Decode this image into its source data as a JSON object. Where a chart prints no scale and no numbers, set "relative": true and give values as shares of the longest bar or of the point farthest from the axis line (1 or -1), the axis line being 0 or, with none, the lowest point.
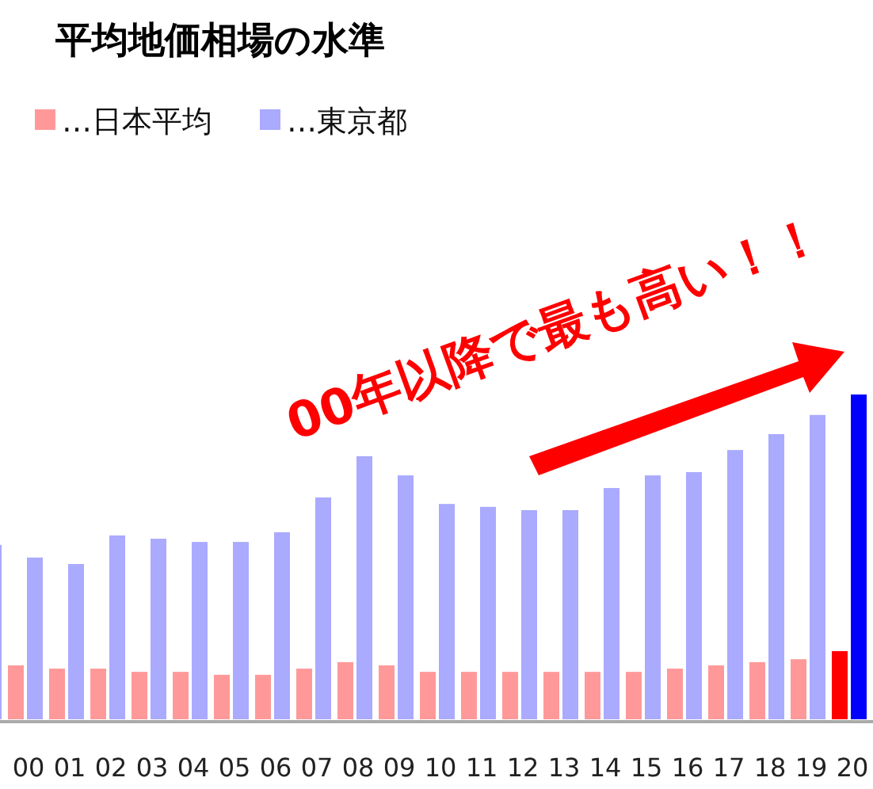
{
  "chart_data": {
    "type": "bar",
    "title": "平均地価相場の水準",
    "relative": true,
    "legend": "top left",
    "categories": [
      null,
      "00",
      "01",
      "02",
      "03",
      "04",
      "05",
      "06",
      "07",
      "08",
      "09",
      "10",
      "11",
      "12",
      "13",
      "14",
      "15",
      "16",
      "17",
      "18",
      "19",
      "20"
    ],
    "series": [
      {
        "name": "…日本平均",
        "color": "#ff9999",
        "colors": [
          null,
          "#ff9999",
          "#ff9999",
          "#ff9999",
          "#ff9999",
          "#ff9999",
          "#ff9999",
          "#ff9999",
          "#ff9999",
          "#ff9999",
          "#ff9999",
          "#ff9999",
          "#ff9999",
          "#ff9999",
          "#ff9999",
          "#ff9999",
          "#ff9999",
          "#ff9999",
          "#ff9999",
          "#ff9999",
          "#ff9999",
          "#ff0000"
        ],
        "values": [
          null,
          0.166,
          0.156,
          0.156,
          0.146,
          0.146,
          0.137,
          0.137,
          0.156,
          0.176,
          0.166,
          0.146,
          0.146,
          0.146,
          0.146,
          0.146,
          0.146,
          0.156,
          0.166,
          0.176,
          0.185,
          0.21
        ]
      },
      {
        "name": "…東京都",
        "color": "#aaaaff",
        "colors": [
          "#aaaaff",
          "#aaaaff",
          "#aaaaff",
          "#aaaaff",
          "#aaaaff",
          "#aaaaff",
          "#aaaaff",
          "#aaaaff",
          "#aaaaff",
          "#aaaaff",
          "#aaaaff",
          "#aaaaff",
          "#aaaaff",
          "#aaaaff",
          "#aaaaff",
          "#aaaaff",
          "#aaaaff",
          "#aaaaff",
          "#aaaaff",
          "#aaaaff",
          "#aaaaff",
          "#0000ff"
        ],
        "values": [
          0.537,
          0.498,
          0.478,
          0.566,
          0.556,
          0.546,
          0.546,
          0.576,
          0.683,
          0.81,
          0.751,
          0.663,
          0.654,
          0.644,
          0.644,
          0.712,
          0.751,
          0.761,
          0.829,
          0.878,
          0.937,
          1
        ]
      }
    ],
    "annotations": [
      "00年以降で最も高い！！"
    ]
  }
}
